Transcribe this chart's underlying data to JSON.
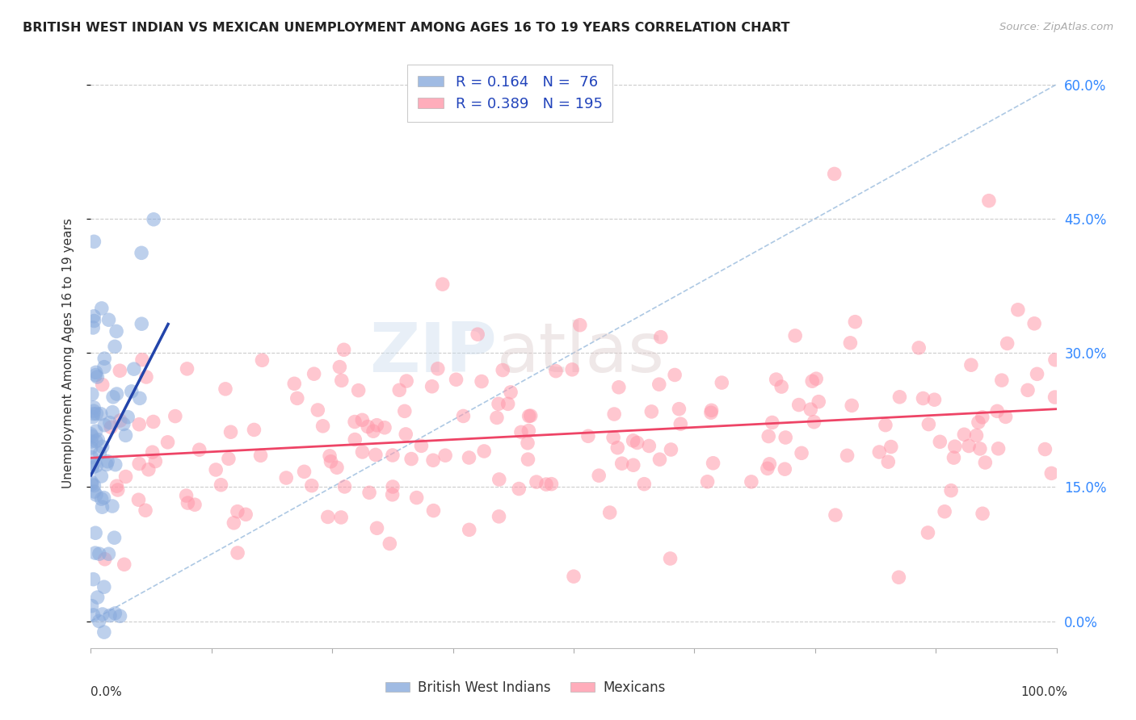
{
  "title": "BRITISH WEST INDIAN VS MEXICAN UNEMPLOYMENT AMONG AGES 16 TO 19 YEARS CORRELATION CHART",
  "source": "Source: ZipAtlas.com",
  "ylabel": "Unemployment Among Ages 16 to 19 years",
  "yticks_labels": [
    "0.0%",
    "15.0%",
    "30.0%",
    "45.0%",
    "60.0%"
  ],
  "ytick_vals": [
    0.0,
    15.0,
    30.0,
    45.0,
    60.0
  ],
  "legend_labels": [
    "British West Indians",
    "Mexicans"
  ],
  "r_bwi": 0.164,
  "n_bwi": 76,
  "r_mex": 0.389,
  "n_mex": 195,
  "color_bwi": "#88AADD",
  "color_mex": "#FF99AA",
  "color_bwi_line": "#2244AA",
  "color_mex_line": "#EE4466",
  "color_dashed": "#99BBDD",
  "watermark_zip": "ZIP",
  "watermark_atlas": "atlas",
  "xlim": [
    0.0,
    100.0
  ],
  "ylim": [
    -3.0,
    63.0
  ],
  "seed": 42
}
